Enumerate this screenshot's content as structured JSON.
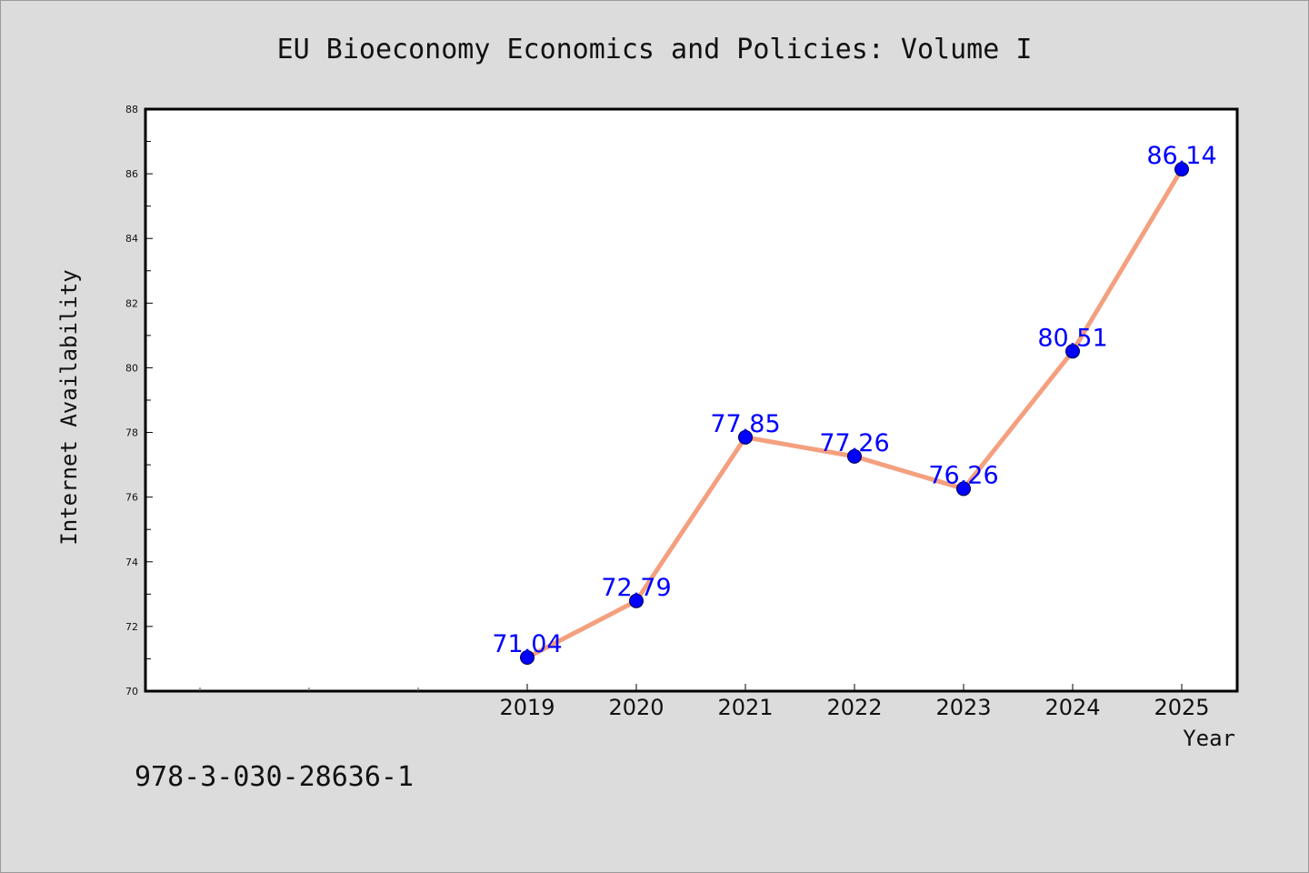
{
  "chart_data": {
    "type": "line",
    "title": "EU Bioeconomy Economics and Policies: Volume I",
    "xlabel": "Year",
    "ylabel": "Internet Availability",
    "x": [
      "2019",
      "2020",
      "2021",
      "2022",
      "2023",
      "2024",
      "2025"
    ],
    "series": [
      {
        "values": [
          71.04,
          72.79,
          77.85,
          77.26,
          76.26,
          80.51,
          86.14
        ],
        "data_labels": [
          "71.04",
          "72.79",
          "77.85",
          "77.26",
          "76.26",
          "80.51",
          "86.14"
        ],
        "line_color": "#f4a07f",
        "marker_color": "#0000ff"
      }
    ],
    "ylim": [
      70,
      88
    ],
    "yticks": [
      "70",
      "72",
      "74",
      "76",
      "78",
      "80",
      "82",
      "84",
      "86",
      "88"
    ],
    "grid": false,
    "legend": "none"
  },
  "footer": {
    "isbn": "978-3-030-28636-1"
  },
  "colors": {
    "background": "#dcdcdc",
    "plot_area": "#ffffff",
    "axis": "#000000"
  }
}
